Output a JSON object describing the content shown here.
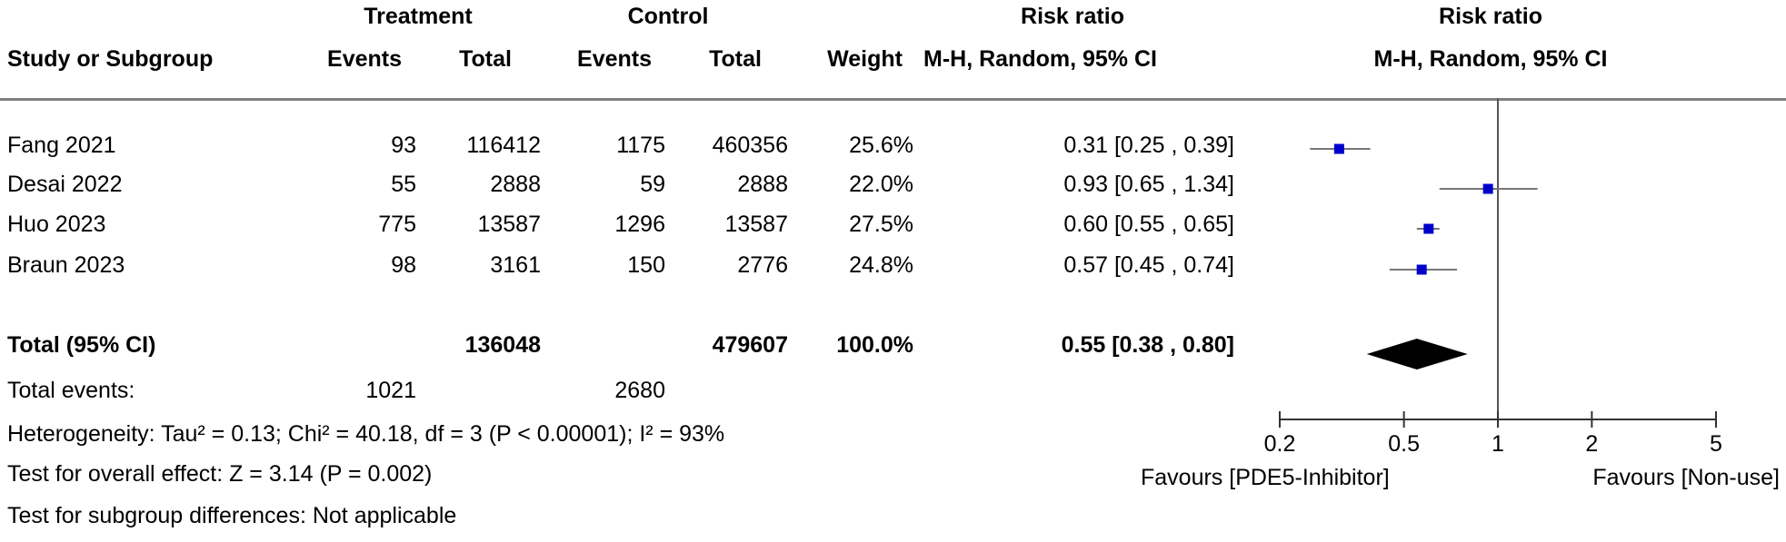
{
  "header": {
    "treatment": "Treatment",
    "control": "Control",
    "risk_ratio_col": "Risk ratio",
    "risk_ratio_col_method": "M-H, Random, 95% CI",
    "plot_title": "Risk ratio",
    "plot_method": "M-H, Random, 95% CI",
    "study": "Study or Subgroup",
    "events": "Events",
    "total": "Total",
    "weight": "Weight"
  },
  "studies": [
    {
      "name": "Fang 2021",
      "t_events": "93",
      "t_total": "116412",
      "c_events": "1175",
      "c_total": "460356",
      "weight": "25.6%",
      "ci_text": "0.31 [0.25 , 0.39]"
    },
    {
      "name": "Desai 2022",
      "t_events": "55",
      "t_total": "2888",
      "c_events": "59",
      "c_total": "2888",
      "weight": "22.0%",
      "ci_text": "0.93 [0.65 , 1.34]"
    },
    {
      "name": "Huo 2023",
      "t_events": "775",
      "t_total": "13587",
      "c_events": "1296",
      "c_total": "13587",
      "weight": "27.5%",
      "ci_text": "0.60 [0.55 , 0.65]"
    },
    {
      "name": "Braun 2023",
      "t_events": "98",
      "t_total": "3161",
      "c_events": "150",
      "c_total": "2776",
      "weight": "24.8%",
      "ci_text": "0.57 [0.45 , 0.74]"
    }
  ],
  "total": {
    "label": "Total (95% CI)",
    "t_total": "136048",
    "c_total": "479607",
    "weight": "100.0%",
    "ci_text": "0.55 [0.38 , 0.80]"
  },
  "total_events": {
    "label": "Total events:",
    "treatment": "1021",
    "control": "2680"
  },
  "footer": {
    "heterogeneity": "Heterogeneity: Tau² = 0.13; Chi² = 40.18, df = 3 (P < 0.00001); I² = 93%",
    "overall_effect": "Test for overall effect: Z = 3.14 (P = 0.002)",
    "subgroup": "Test for subgroup differences: Not applicable"
  },
  "chart_data": {
    "type": "forest",
    "scale": "log",
    "xlim": [
      0.2,
      5
    ],
    "ticks": [
      0.2,
      0.5,
      1,
      2,
      5
    ],
    "tick_labels": [
      "0.2",
      "0.5",
      "1",
      "2",
      "5"
    ],
    "null_line": 1,
    "favours_left": "Favours [PDE5-Inhibitor]",
    "favours_right": "Favours [Non-use]",
    "marker_color": "#0000cc",
    "series": [
      {
        "study": "Fang 2021",
        "estimate": 0.31,
        "lower": 0.25,
        "upper": 0.39,
        "weight": 25.6
      },
      {
        "study": "Desai 2022",
        "estimate": 0.93,
        "lower": 0.65,
        "upper": 1.34,
        "weight": 22.0
      },
      {
        "study": "Huo 2023",
        "estimate": 0.6,
        "lower": 0.55,
        "upper": 0.65,
        "weight": 27.5
      },
      {
        "study": "Braun 2023",
        "estimate": 0.57,
        "lower": 0.45,
        "upper": 0.74,
        "weight": 24.8
      }
    ],
    "pooled": {
      "estimate": 0.55,
      "lower": 0.38,
      "upper": 0.8
    }
  }
}
